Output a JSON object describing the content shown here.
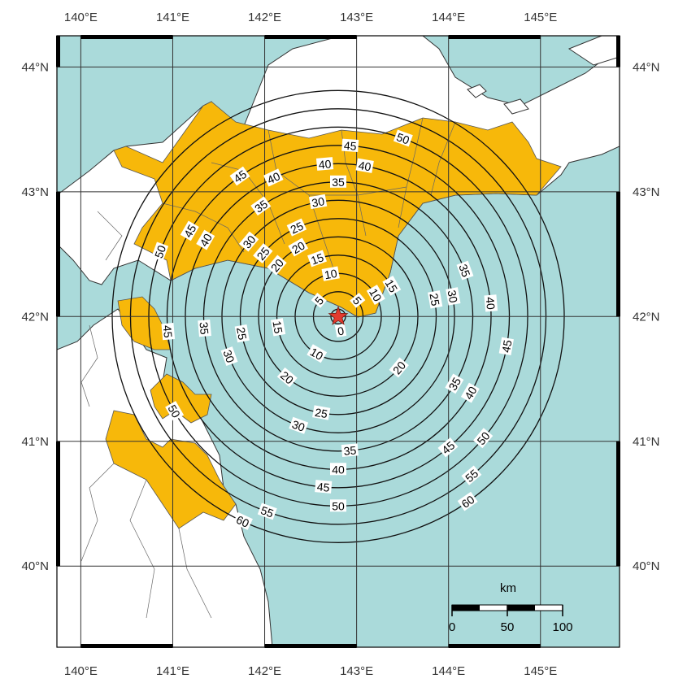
{
  "colors": {
    "sea": "#aadada",
    "land": "#ffffff",
    "highlight_land": "#f7b80a",
    "border": "#222222",
    "epicenter": "#e23b2e"
  },
  "axes": {
    "lon_ticks": [
      "140°E",
      "141°E",
      "142°E",
      "143°E",
      "144°E",
      "145°E"
    ],
    "lat_ticks": [
      "44°N",
      "43°N",
      "42°N",
      "41°N",
      "40°N"
    ]
  },
  "epicenter": {
    "lon": 142.8,
    "lat": 42.0,
    "icon": "star-icon"
  },
  "contours": {
    "unit": "seconds",
    "levels": [
      "5",
      "10",
      "15",
      "20",
      "25",
      "30",
      "35",
      "40",
      "45",
      "50",
      "55",
      "60"
    ],
    "labels": [
      {
        "text": "0"
      },
      {
        "text": "5"
      },
      {
        "text": "5"
      },
      {
        "text": "10"
      },
      {
        "text": "10"
      },
      {
        "text": "10"
      },
      {
        "text": "15"
      },
      {
        "text": "15"
      },
      {
        "text": "15"
      },
      {
        "text": "20"
      },
      {
        "text": "20"
      },
      {
        "text": "20"
      },
      {
        "text": "20"
      },
      {
        "text": "25"
      },
      {
        "text": "25"
      },
      {
        "text": "25"
      },
      {
        "text": "25"
      },
      {
        "text": "25"
      },
      {
        "text": "30"
      },
      {
        "text": "30"
      },
      {
        "text": "30"
      },
      {
        "text": "30"
      },
      {
        "text": "30"
      },
      {
        "text": "35"
      },
      {
        "text": "35"
      },
      {
        "text": "35"
      },
      {
        "text": "35"
      },
      {
        "text": "35"
      },
      {
        "text": "35"
      },
      {
        "text": "40"
      },
      {
        "text": "40"
      },
      {
        "text": "40"
      },
      {
        "text": "40"
      },
      {
        "text": "40"
      },
      {
        "text": "40"
      },
      {
        "text": "40"
      },
      {
        "text": "45"
      },
      {
        "text": "45"
      },
      {
        "text": "45"
      },
      {
        "text": "45"
      },
      {
        "text": "45"
      },
      {
        "text": "45"
      },
      {
        "text": "45"
      },
      {
        "text": "50"
      },
      {
        "text": "50"
      },
      {
        "text": "50"
      },
      {
        "text": "50"
      },
      {
        "text": "50"
      },
      {
        "text": "55"
      },
      {
        "text": "55"
      },
      {
        "text": "60"
      },
      {
        "text": "60"
      }
    ]
  },
  "scale_bar": {
    "unit": "km",
    "labels": [
      "0",
      "50",
      "100"
    ]
  }
}
